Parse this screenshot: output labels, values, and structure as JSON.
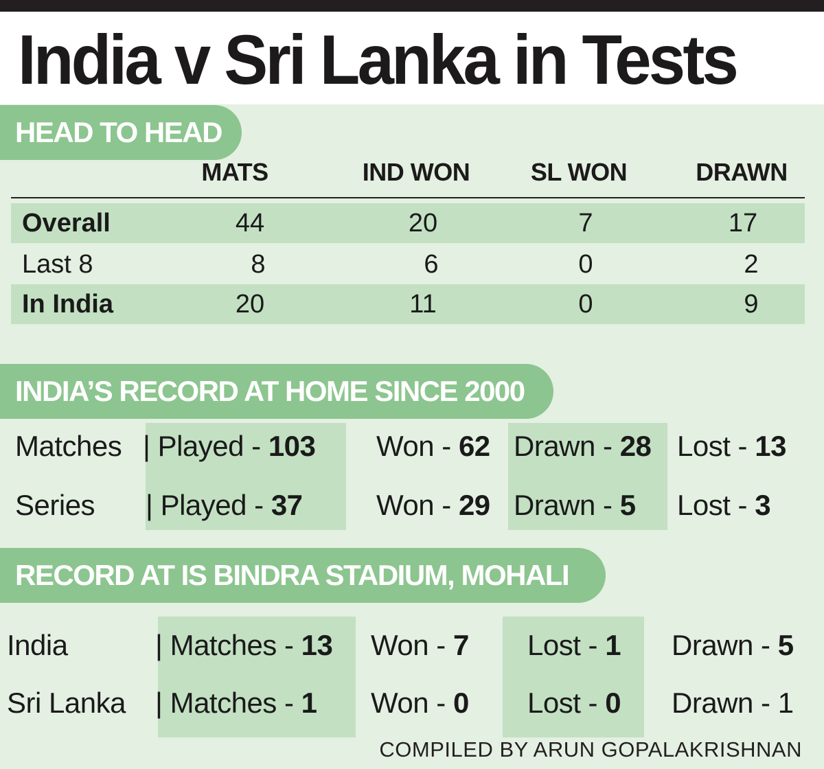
{
  "title": "India v Sri Lanka in Tests",
  "credit": "COMPILED BY ARUN GOPALAKRISHNAN",
  "colors": {
    "banner": "#8cc58f",
    "panel": "#e4f0e2",
    "row_shade": "#c3e0c3",
    "top_bar": "#231f20"
  },
  "chart_data": [
    {
      "type": "table",
      "title": "HEAD TO HEAD",
      "columns": [
        "MATS",
        "IND WON",
        "SL WON",
        "DRAWN"
      ],
      "rows": [
        {
          "label": "Overall",
          "values": [
            "44",
            "20",
            "7",
            "17"
          ]
        },
        {
          "label": "Last 8",
          "values": [
            "8",
            "6",
            "0",
            "2"
          ]
        },
        {
          "label": "In India",
          "values": [
            "20",
            "11",
            "0",
            "9"
          ]
        }
      ]
    },
    {
      "type": "table",
      "title": "INDIA’S RECORD AT HOME SINCE 2000",
      "rows": [
        {
          "label": "Matches",
          "cells": [
            {
              "label": "| Played - ",
              "value": "103"
            },
            {
              "label": "Won - ",
              "value": "62"
            },
            {
              "label": "Drawn - ",
              "value": "28"
            },
            {
              "label": "Lost - ",
              "value": "13"
            }
          ]
        },
        {
          "label": "Series",
          "cells": [
            {
              "label": "| Played - ",
              "value": "37"
            },
            {
              "label": "Won - ",
              "value": "29"
            },
            {
              "label": "Drawn - ",
              "value": "5"
            },
            {
              "label": "Lost - ",
              "value": "3"
            }
          ]
        }
      ]
    },
    {
      "type": "table",
      "title": "RECORD AT IS BINDRA STADIUM, MOHALI",
      "rows": [
        {
          "label": "India",
          "cells": [
            {
              "label": "| Matches - ",
              "value": "13"
            },
            {
              "label": "Won - ",
              "value": "7"
            },
            {
              "label": "Lost - ",
              "value": "1"
            },
            {
              "label": "Drawn - ",
              "value": "5"
            }
          ]
        },
        {
          "label": "Sri Lanka",
          "cells": [
            {
              "label": "| Matches - ",
              "value": "1"
            },
            {
              "label": "Won - ",
              "value": "0"
            },
            {
              "label": "Lost - ",
              "value": "0"
            },
            {
              "label": "Drawn - ",
              "value": "1"
            }
          ]
        }
      ]
    }
  ]
}
